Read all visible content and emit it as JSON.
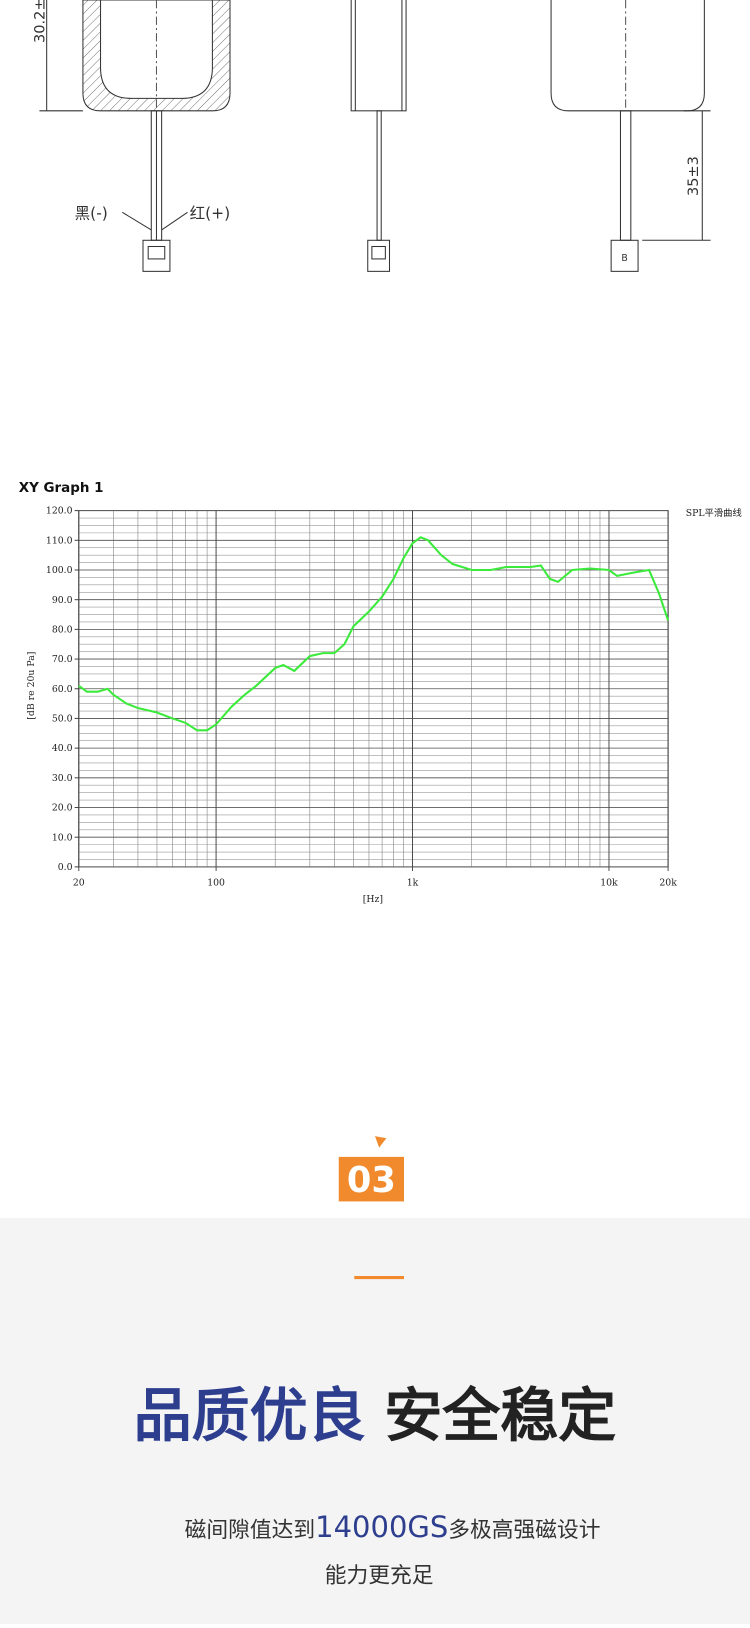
{
  "drawing": {
    "dim_height": "30.2±",
    "wire_black": "黑(-)",
    "wire_red": "红(+)",
    "dim_wire": "35±3",
    "connector_mark": "B"
  },
  "chart_data": {
    "type": "line",
    "title": "XY Graph 1",
    "xlabel": "[Hz]",
    "ylabel": "[dB re 20u Pa]",
    "xscale": "log",
    "grid": true,
    "minor_grid": true,
    "legend": "right",
    "x": [
      20,
      22,
      25,
      28,
      30,
      35,
      40,
      50,
      60,
      70,
      80,
      90,
      100,
      120,
      140,
      160,
      200,
      220,
      250,
      300,
      350,
      400,
      450,
      500,
      600,
      700,
      800,
      900,
      1000,
      1100,
      1200,
      1400,
      1600,
      2000,
      2500,
      3000,
      4000,
      4500,
      5000,
      5500,
      6500,
      8000,
      10000,
      11000,
      13000,
      16000,
      18000,
      20000
    ],
    "series": [
      {
        "name": "SPL平滑曲线",
        "color": "#3bea3b",
        "values": [
          61,
          59,
          59,
          60,
          58,
          55,
          53.5,
          52,
          50,
          48.5,
          46,
          46,
          48,
          54,
          58,
          61,
          67,
          68,
          66,
          71,
          72,
          72,
          75,
          81,
          86,
          91,
          97,
          104,
          109,
          111,
          110,
          105,
          102,
          100,
          100,
          101,
          101,
          101.5,
          97,
          96,
          100,
          100.5,
          100,
          98,
          99,
          100,
          92,
          83
        ]
      }
    ],
    "xlim": [
      20,
      20000
    ],
    "ylim": [
      0,
      120
    ],
    "xticks": [
      20,
      100,
      {
        "value": 1000,
        "label": "1k"
      },
      {
        "value": 10000,
        "label": "10k"
      },
      {
        "value": 20000,
        "label": "20k"
      }
    ],
    "yticks": [
      {
        "value": 0,
        "label": "0.0"
      },
      {
        "value": 10,
        "label": "10.0"
      },
      {
        "value": 20,
        "label": "20.0"
      },
      {
        "value": 30,
        "label": "30.0"
      },
      {
        "value": 40,
        "label": "40.0"
      },
      {
        "value": 50,
        "label": "50.0"
      },
      {
        "value": 60,
        "label": "60.0"
      },
      {
        "value": 70,
        "label": "70.0"
      },
      {
        "value": 80,
        "label": "80.0"
      },
      {
        "value": 90,
        "label": "90.0"
      },
      {
        "value": 100,
        "label": "100.0"
      },
      {
        "value": 110,
        "label": "110.0"
      },
      {
        "value": 120,
        "label": "120.0"
      }
    ]
  },
  "section": {
    "number": "03",
    "title_blue": "品质优良",
    "title_dark": "安全稳定",
    "body_start": "磁间隙值达到",
    "body_highlight": "14000GS",
    "body_end": "多极高强磁设计",
    "body_line2": "能力更充足"
  }
}
